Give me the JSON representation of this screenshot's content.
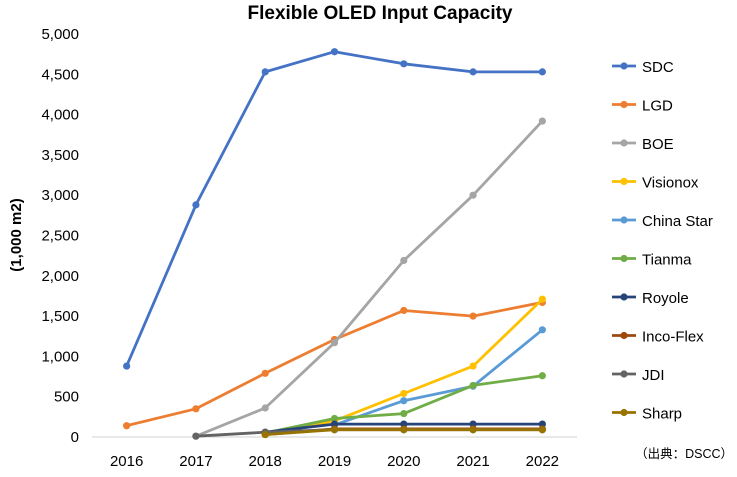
{
  "chart_data": {
    "type": "line",
    "title": "Flexible OLED Input Capacity",
    "xlabel": "",
    "ylabel": "(1,000 m2)",
    "categories": [
      "2016",
      "2017",
      "2018",
      "2019",
      "2020",
      "2021",
      "2022"
    ],
    "ylim": [
      0,
      5000
    ],
    "yticks": [
      0,
      500,
      1000,
      1500,
      2000,
      2500,
      3000,
      3500,
      4000,
      4500,
      5000
    ],
    "ytick_labels": [
      "0",
      "500",
      "1,000",
      "1,500",
      "2,000",
      "2,500",
      "3,000",
      "3,500",
      "4,000",
      "4,500",
      "5,000"
    ],
    "grid": false,
    "legend_position": "right",
    "source_note": "（出典：DSCC）",
    "series": [
      {
        "name": "SDC",
        "color": "#4472C4",
        "values": [
          880,
          2880,
          4530,
          4780,
          4630,
          4530,
          4530
        ]
      },
      {
        "name": "LGD",
        "color": "#ED7D31",
        "values": [
          140,
          350,
          790,
          1210,
          1570,
          1500,
          1670
        ]
      },
      {
        "name": "BOE",
        "color": "#A5A5A5",
        "values": [
          null,
          10,
          360,
          1170,
          2190,
          3000,
          3920
        ]
      },
      {
        "name": "Visionox",
        "color": "#FFC000",
        "values": [
          null,
          null,
          50,
          200,
          540,
          880,
          1710
        ]
      },
      {
        "name": "China Star",
        "color": "#5B9BD5",
        "values": [
          null,
          null,
          null,
          150,
          450,
          630,
          1330
        ]
      },
      {
        "name": "Tianma",
        "color": "#70AD47",
        "values": [
          null,
          null,
          50,
          230,
          290,
          640,
          760
        ]
      },
      {
        "name": "Royole",
        "color": "#264478",
        "values": [
          null,
          null,
          60,
          160,
          160,
          160,
          160
        ]
      },
      {
        "name": "Inco-Flex",
        "color": "#9E480E",
        "values": [
          null,
          null,
          30,
          100,
          100,
          100,
          100
        ]
      },
      {
        "name": "JDI",
        "color": "#636363",
        "values": [
          null,
          10,
          60,
          90,
          90,
          90,
          90
        ]
      },
      {
        "name": "Sharp",
        "color": "#997300",
        "values": [
          null,
          null,
          30,
          90,
          90,
          90,
          90
        ]
      }
    ]
  }
}
